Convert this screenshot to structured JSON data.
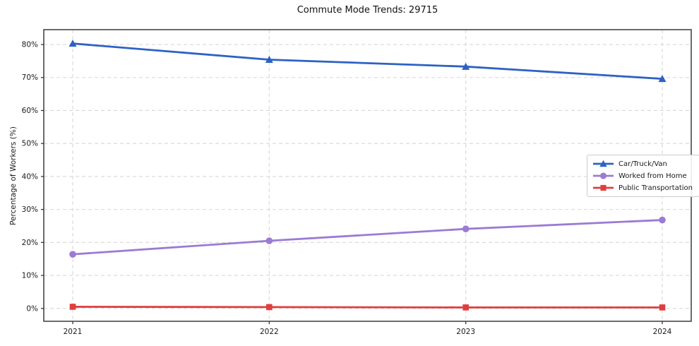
{
  "chart_data": {
    "type": "line",
    "title": "Commute Mode Trends: 29715",
    "xlabel": "",
    "ylabel": "Percentage of Workers (%)",
    "categories": [
      "2021",
      "2022",
      "2023",
      "2024"
    ],
    "series": [
      {
        "name": "Car/Truck/Van",
        "color": "#2d62c3",
        "marker": "triangle",
        "values": [
          80.3,
          75.4,
          73.3,
          69.6
        ]
      },
      {
        "name": "Worked from Home",
        "color": "#9b7bd3",
        "marker": "circle",
        "values": [
          16.4,
          20.5,
          24.1,
          26.8
        ]
      },
      {
        "name": "Public Transportation",
        "color": "#e03e3e",
        "marker": "square",
        "values": [
          0.5,
          0.4,
          0.3,
          0.3
        ]
      }
    ],
    "yticks": [
      0,
      10,
      20,
      30,
      40,
      50,
      60,
      70,
      80
    ],
    "ytick_labels": [
      "0%",
      "10%",
      "20%",
      "30%",
      "40%",
      "50%",
      "60%",
      "70%",
      "80%"
    ],
    "ylim": [
      -3.9,
      84.5
    ],
    "grid": true,
    "grid_style": "dashed",
    "legend_position": "center right",
    "colors": {
      "grid": "#d7d7d7",
      "spine": "#3a3a3a",
      "text": "#1a1a1a",
      "background": "#ffffff"
    }
  }
}
